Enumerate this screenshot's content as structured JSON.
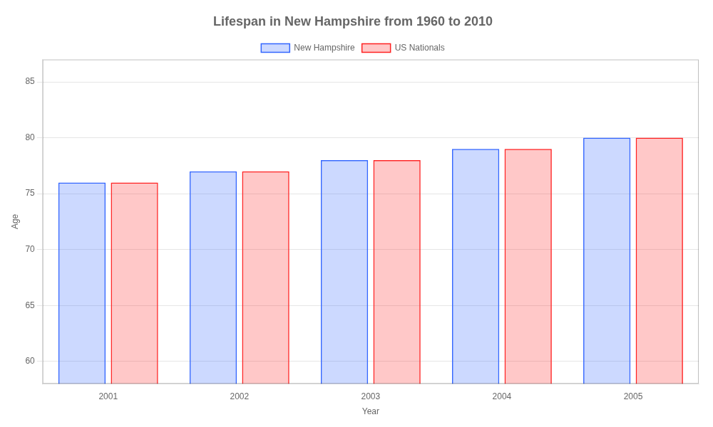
{
  "chart_data": {
    "type": "bar",
    "title": "Lifespan in New Hampshire from 1960 to 2010",
    "xlabel": "Year",
    "ylabel": "Age",
    "categories": [
      "2001",
      "2002",
      "2003",
      "2004",
      "2005"
    ],
    "series": [
      {
        "name": "New Hampshire",
        "color": "#3366ff",
        "values": [
          76,
          77,
          78,
          79,
          80
        ]
      },
      {
        "name": "US Nationals",
        "color": "#ff2222",
        "values": [
          76,
          77,
          78,
          79,
          80
        ]
      }
    ],
    "ylim": [
      58,
      87
    ],
    "yticks": [
      60,
      65,
      70,
      75,
      80,
      85
    ],
    "grid": true,
    "legend": "top"
  }
}
